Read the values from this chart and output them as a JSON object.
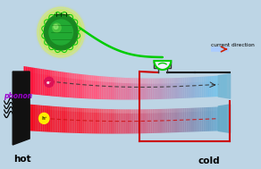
{
  "bg_color": "#bdd5e5",
  "hot_label": "hot",
  "cold_label": "cold",
  "phonon_label": "phonon",
  "current_label": "current direction",
  "led_green": "#00cc00",
  "globe_green": "#1a9922",
  "globe_glow": "#d8ee66",
  "electron_color": "#dd1155",
  "hole_color": "#ffee00",
  "circuit_red": "#cc0000",
  "circuit_black": "#111111",
  "arrow_blue": "#88aaff",
  "arrow_red": "#dd2200"
}
